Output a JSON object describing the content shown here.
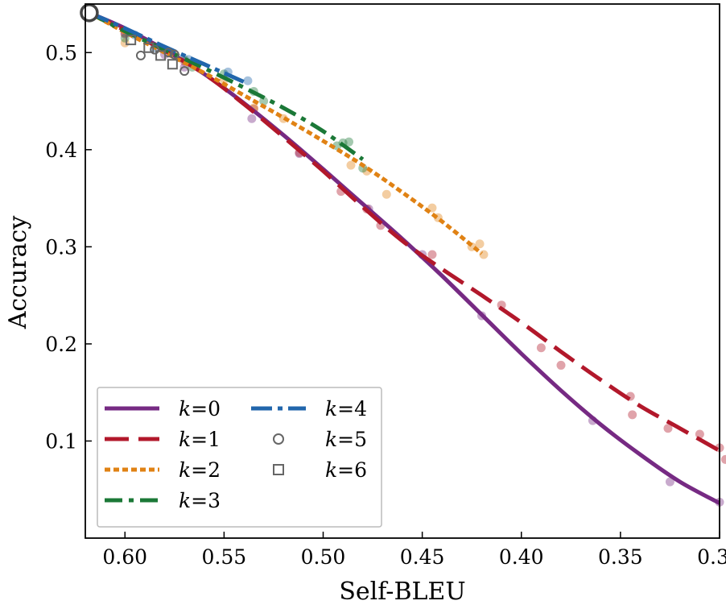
{
  "chart_data": {
    "type": "line",
    "xlabel": "Self-BLEU",
    "ylabel": "Accuracy",
    "xlim": [
      0.62,
      0.3
    ],
    "ylim": [
      0.0,
      0.55
    ],
    "x_reversed": true,
    "xticks": [
      0.6,
      0.55,
      0.5,
      0.45,
      0.4,
      0.35,
      0.3
    ],
    "xtick_labels": [
      "0.60",
      "0.55",
      "0.50",
      "0.45",
      "0.40",
      "0.35",
      "0.30"
    ],
    "yticks": [
      0.1,
      0.2,
      0.3,
      0.4,
      0.5
    ],
    "ytick_labels": [
      "0.1",
      "0.2",
      "0.3",
      "0.4",
      "0.5"
    ],
    "grid": false,
    "legend_position": "lower-left",
    "start_point": {
      "x": 0.618,
      "y": 0.541
    },
    "series": [
      {
        "name": "0",
        "var": "k",
        "color": "#762a83",
        "style": "solid",
        "marker": "none",
        "line": [
          [
            0.618,
            0.541
          ],
          [
            0.6,
            0.525
          ],
          [
            0.58,
            0.503
          ],
          [
            0.56,
            0.478
          ],
          [
            0.54,
            0.448
          ],
          [
            0.52,
            0.415
          ],
          [
            0.5,
            0.38
          ],
          [
            0.48,
            0.344
          ],
          [
            0.46,
            0.308
          ],
          [
            0.44,
            0.27
          ],
          [
            0.42,
            0.23
          ],
          [
            0.4,
            0.19
          ],
          [
            0.38,
            0.152
          ],
          [
            0.36,
            0.117
          ],
          [
            0.34,
            0.086
          ],
          [
            0.32,
            0.058
          ],
          [
            0.3,
            0.036
          ]
        ],
        "points": [
          [
            0.6,
            0.52
          ],
          [
            0.58,
            0.498
          ],
          [
            0.57,
            0.485
          ],
          [
            0.536,
            0.432
          ],
          [
            0.512,
            0.396
          ],
          [
            0.477,
            0.339
          ],
          [
            0.45,
            0.292
          ],
          [
            0.42,
            0.229
          ],
          [
            0.364,
            0.121
          ],
          [
            0.325,
            0.058
          ],
          [
            0.3,
            0.037
          ]
        ]
      },
      {
        "name": "1",
        "var": "k",
        "color": "#b2182b",
        "style": "dashed",
        "marker": "none",
        "line": [
          [
            0.618,
            0.541
          ],
          [
            0.6,
            0.523
          ],
          [
            0.58,
            0.502
          ],
          [
            0.56,
            0.478
          ],
          [
            0.54,
            0.447
          ],
          [
            0.52,
            0.413
          ],
          [
            0.5,
            0.378
          ],
          [
            0.48,
            0.341
          ],
          [
            0.46,
            0.306
          ],
          [
            0.44,
            0.277
          ],
          [
            0.42,
            0.25
          ],
          [
            0.4,
            0.222
          ],
          [
            0.38,
            0.192
          ],
          [
            0.36,
            0.163
          ],
          [
            0.34,
            0.136
          ],
          [
            0.32,
            0.113
          ],
          [
            0.3,
            0.09
          ]
        ],
        "points": [
          [
            0.6,
            0.519
          ],
          [
            0.57,
            0.491
          ],
          [
            0.535,
            0.442
          ],
          [
            0.512,
            0.397
          ],
          [
            0.491,
            0.357
          ],
          [
            0.478,
            0.339
          ],
          [
            0.471,
            0.322
          ],
          [
            0.445,
            0.292
          ],
          [
            0.41,
            0.24
          ],
          [
            0.39,
            0.196
          ],
          [
            0.38,
            0.178
          ],
          [
            0.345,
            0.146
          ],
          [
            0.344,
            0.127
          ],
          [
            0.326,
            0.113
          ],
          [
            0.31,
            0.107
          ],
          [
            0.3,
            0.093
          ],
          [
            0.297,
            0.081
          ]
        ]
      },
      {
        "name": "2",
        "var": "k",
        "color": "#e08214",
        "style": "dotted",
        "marker": "none",
        "line": [
          [
            0.618,
            0.541
          ],
          [
            0.6,
            0.521
          ],
          [
            0.58,
            0.5
          ],
          [
            0.56,
            0.479
          ],
          [
            0.54,
            0.456
          ],
          [
            0.52,
            0.433
          ],
          [
            0.5,
            0.409
          ],
          [
            0.48,
            0.384
          ],
          [
            0.46,
            0.356
          ],
          [
            0.44,
            0.326
          ],
          [
            0.42,
            0.293
          ]
        ],
        "points": [
          [
            0.6,
            0.51
          ],
          [
            0.575,
            0.498
          ],
          [
            0.55,
            0.472
          ],
          [
            0.535,
            0.443
          ],
          [
            0.52,
            0.432
          ],
          [
            0.486,
            0.384
          ],
          [
            0.478,
            0.378
          ],
          [
            0.468,
            0.354
          ],
          [
            0.445,
            0.34
          ],
          [
            0.442,
            0.33
          ],
          [
            0.425,
            0.3
          ],
          [
            0.421,
            0.303
          ],
          [
            0.419,
            0.292
          ]
        ]
      },
      {
        "name": "3",
        "var": "k",
        "color": "#1b7837",
        "style": "dashdot",
        "marker": "none",
        "line": [
          [
            0.618,
            0.541
          ],
          [
            0.6,
            0.522
          ],
          [
            0.58,
            0.503
          ],
          [
            0.56,
            0.484
          ],
          [
            0.54,
            0.464
          ],
          [
            0.52,
            0.443
          ],
          [
            0.5,
            0.419
          ],
          [
            0.48,
            0.39
          ]
        ],
        "points": [
          [
            0.6,
            0.515
          ],
          [
            0.57,
            0.493
          ],
          [
            0.566,
            0.485
          ],
          [
            0.55,
            0.478
          ],
          [
            0.535,
            0.46
          ],
          [
            0.53,
            0.45
          ],
          [
            0.493,
            0.404
          ],
          [
            0.49,
            0.407
          ],
          [
            0.487,
            0.408
          ],
          [
            0.48,
            0.381
          ]
        ]
      },
      {
        "name": "4",
        "var": "k",
        "color": "#2166ac",
        "style": "dashdotdot",
        "marker": "none",
        "line": [
          [
            0.618,
            0.541
          ],
          [
            0.6,
            0.525
          ],
          [
            0.58,
            0.506
          ],
          [
            0.56,
            0.488
          ],
          [
            0.538,
            0.468
          ]
        ],
        "points": [
          [
            0.595,
            0.518
          ],
          [
            0.585,
            0.505
          ],
          [
            0.568,
            0.493
          ],
          [
            0.548,
            0.48
          ],
          [
            0.538,
            0.471
          ]
        ]
      },
      {
        "name": "5",
        "var": "k",
        "color": "#666666",
        "style": "none",
        "marker": "circle",
        "points": [
          [
            0.592,
            0.497
          ],
          [
            0.585,
            0.503
          ],
          [
            0.578,
            0.5
          ],
          [
            0.575,
            0.498
          ],
          [
            0.57,
            0.481
          ]
        ]
      },
      {
        "name": "6",
        "var": "k",
        "color": "#666666",
        "style": "none",
        "marker": "square",
        "points": [
          [
            0.597,
            0.513
          ],
          [
            0.588,
            0.505
          ],
          [
            0.582,
            0.497
          ],
          [
            0.576,
            0.488
          ]
        ]
      }
    ]
  }
}
